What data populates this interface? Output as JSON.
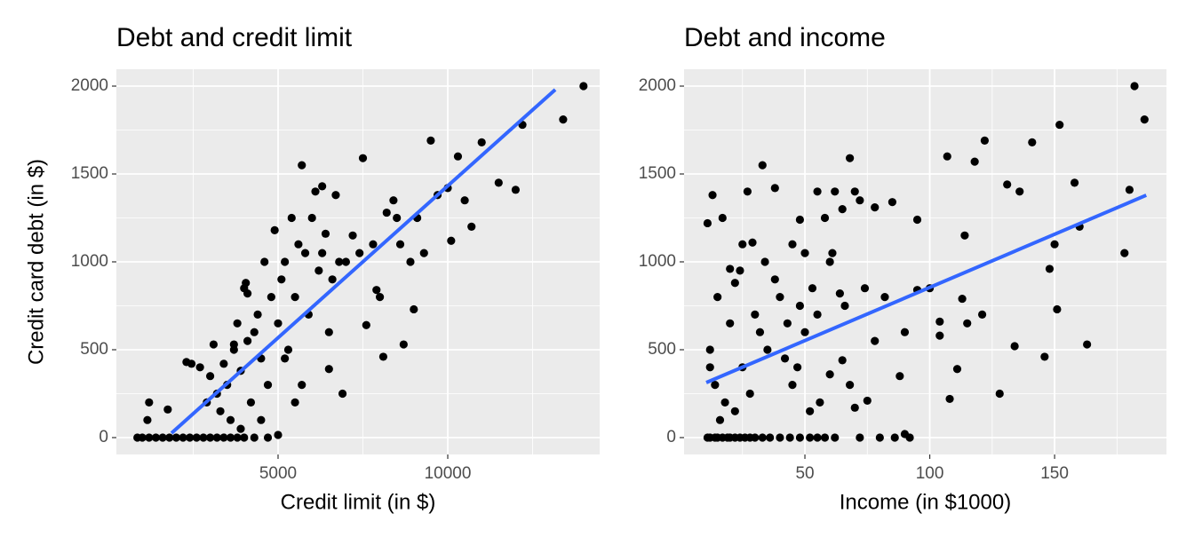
{
  "chart_data": [
    {
      "type": "scatter",
      "title": "Debt and credit limit",
      "x_label": "Credit limit (in $)",
      "y_label": "Credit card debt (in $)",
      "xlim": [
        236,
        14476
      ],
      "ylim": [
        -96,
        2096
      ],
      "xticks": [
        5000,
        10000
      ],
      "yticks": [
        0,
        500,
        1000,
        1500,
        2000
      ],
      "x_minor_grid": [
        2500,
        7500,
        12500
      ],
      "y_minor_grid": [
        250,
        750,
        1250,
        1750
      ],
      "grid": true,
      "color": "#000000",
      "x": [
        855,
        1000,
        1200,
        1400,
        1600,
        1800,
        2000,
        2200,
        2400,
        2600,
        2800,
        3000,
        3200,
        3400,
        3600,
        3800,
        4000,
        4300,
        4700,
        5000,
        1150,
        1200,
        1750,
        2300,
        2450,
        2700,
        2900,
        3000,
        3100,
        3200,
        3300,
        3400,
        3500,
        3600,
        3700,
        3800,
        3900,
        4000,
        4050,
        4100,
        4200,
        4300,
        4400,
        4500,
        4600,
        4700,
        4800,
        4900,
        5000,
        5100,
        5200,
        5300,
        5400,
        5500,
        5600,
        5700,
        5800,
        5900,
        6000,
        6100,
        6200,
        6300,
        6400,
        6500,
        6600,
        6700,
        6800,
        6900,
        7000,
        7200,
        7400,
        7500,
        7600,
        7800,
        8000,
        8100,
        8200,
        8400,
        8600,
        8700,
        8900,
        9000,
        9300,
        9500,
        9700,
        10000,
        10100,
        10300,
        10500,
        10700,
        11000,
        11500,
        12000,
        12200,
        13400,
        14000,
        5700,
        6300,
        3700,
        4100,
        5200,
        4500,
        5500,
        3900,
        6500,
        8500,
        9100,
        7900
      ],
      "values": [
        0,
        0,
        0,
        0,
        0,
        0,
        0,
        0,
        0,
        0,
        0,
        0,
        0,
        0,
        0,
        0,
        0,
        0,
        0,
        15,
        100,
        200,
        160,
        430,
        420,
        400,
        200,
        350,
        530,
        250,
        150,
        420,
        300,
        100,
        500,
        650,
        380,
        850,
        880,
        550,
        200,
        600,
        700,
        450,
        1000,
        300,
        800,
        1180,
        650,
        900,
        1000,
        500,
        1250,
        800,
        1100,
        300,
        1050,
        700,
        1250,
        1400,
        950,
        1050,
        1160,
        600,
        900,
        1380,
        1000,
        250,
        1000,
        1150,
        1050,
        1590,
        640,
        1100,
        800,
        460,
        1280,
        1350,
        1100,
        530,
        1000,
        730,
        1050,
        1690,
        1380,
        1420,
        1120,
        1600,
        1350,
        1200,
        1680,
        1450,
        1410,
        1780,
        1810,
        2000,
        1550,
        1430,
        530,
        820,
        450,
        100,
        200,
        50,
        390,
        1250,
        1250,
        840
      ],
      "trend": {
        "x": [
          1859,
          13168
        ],
        "values": [
          25,
          1980
        ],
        "color": "#3366FF"
      }
    },
    {
      "type": "scatter",
      "title": "Debt and income",
      "x_label": "Income (in $1000)",
      "xlim": [
        1.6,
        194.8
      ],
      "ylim": [
        -96,
        2096
      ],
      "xticks": [
        50,
        100,
        150
      ],
      "yticks": [
        0,
        500,
        1000,
        1500,
        2000
      ],
      "x_minor_grid": [
        25,
        75,
        125,
        175
      ],
      "y_minor_grid": [
        250,
        750,
        1250,
        1750
      ],
      "grid": true,
      "color": "#000000",
      "x": [
        11,
        12,
        14,
        15,
        17,
        19,
        20,
        22,
        24,
        26,
        28,
        30,
        33,
        36,
        40,
        44,
        48,
        52,
        55,
        58,
        62,
        72,
        80,
        86,
        92,
        90,
        11,
        13,
        17,
        20,
        22,
        25,
        27,
        29,
        33,
        38,
        45,
        48,
        50,
        55,
        58,
        62,
        65,
        68,
        70,
        72,
        78,
        85,
        95,
        107,
        118,
        122,
        131,
        136,
        141,
        152,
        158,
        180,
        182,
        186,
        178,
        160,
        150,
        148,
        151,
        146,
        163,
        134,
        128,
        111,
        108,
        104,
        104,
        121,
        115,
        114,
        113,
        100,
        95,
        88,
        90,
        82,
        78,
        75,
        70,
        65,
        60,
        55,
        50,
        45,
        40,
        35,
        30,
        25,
        20,
        15,
        12,
        14,
        18,
        22,
        28,
        32,
        38,
        42,
        48,
        52,
        56,
        60,
        64,
        68,
        74,
        12,
        16,
        24,
        34,
        43,
        47,
        53,
        61,
        66
      ],
      "values": [
        0,
        0,
        0,
        0,
        0,
        0,
        0,
        0,
        0,
        0,
        0,
        0,
        0,
        0,
        0,
        0,
        0,
        0,
        0,
        0,
        0,
        0,
        0,
        0,
        0,
        20,
        1220,
        1380,
        1250,
        960,
        880,
        1100,
        1400,
        1110,
        1550,
        1420,
        1100,
        1240,
        1050,
        1400,
        1250,
        1400,
        1300,
        1590,
        1400,
        1350,
        1310,
        1340,
        1240,
        1600,
        1570,
        1690,
        1440,
        1400,
        1680,
        1780,
        1450,
        1410,
        2000,
        1810,
        1050,
        1200,
        1100,
        960,
        730,
        460,
        530,
        520,
        250,
        390,
        220,
        660,
        580,
        700,
        650,
        1150,
        790,
        850,
        840,
        350,
        600,
        800,
        550,
        210,
        170,
        440,
        360,
        700,
        600,
        300,
        800,
        500,
        700,
        400,
        650,
        800,
        500,
        300,
        200,
        150,
        250,
        600,
        900,
        450,
        750,
        150,
        200,
        1000,
        820,
        300,
        850,
        400,
        100,
        950,
        1000,
        650,
        400,
        850,
        1050,
        750
      ],
      "trend": {
        "x": [
          10.5,
          186.7
        ],
        "values": [
          313,
          1379
        ],
        "color": "#3366FF"
      }
    }
  ]
}
